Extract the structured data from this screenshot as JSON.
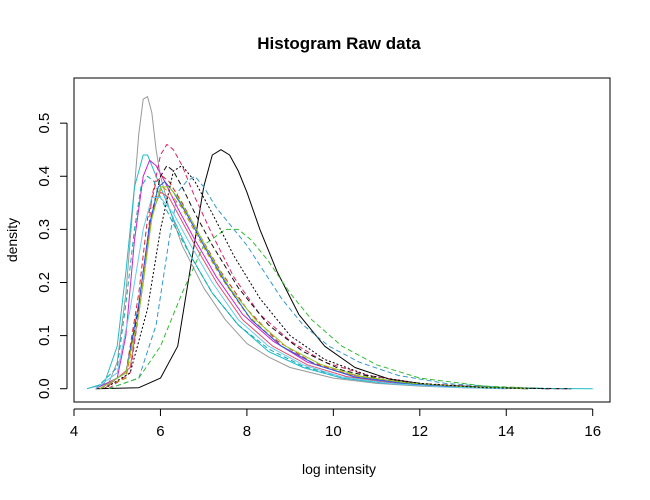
{
  "chart_data": {
    "type": "line",
    "title": "Histogram Raw data",
    "xlabel": "log intensity",
    "ylabel": "density",
    "xlim": [
      4.0,
      16.4
    ],
    "ylim": [
      -0.025,
      0.585
    ],
    "xticks": [
      4,
      6,
      8,
      10,
      12,
      14,
      16
    ],
    "yticks": [
      0.0,
      0.1,
      0.2,
      0.3,
      0.4,
      0.5
    ],
    "xtick_labels": [
      "4",
      "6",
      "8",
      "10",
      "12",
      "14",
      "16"
    ],
    "ytick_labels": [
      "0.0",
      "0.1",
      "0.2",
      "0.3",
      "0.4",
      "0.5"
    ],
    "grid": false,
    "legend": "none",
    "series": [
      {
        "color": "#000000",
        "dash": "solid",
        "x": [
          4.5,
          5.5,
          6.0,
          6.4,
          6.8,
          7.0,
          7.2,
          7.4,
          7.6,
          7.8,
          8.0,
          8.3,
          8.7,
          9.2,
          9.8,
          10.5,
          11.3,
          12.2,
          13.5,
          15.0
        ],
        "y": [
          0.0,
          0.002,
          0.02,
          0.08,
          0.28,
          0.38,
          0.44,
          0.45,
          0.44,
          0.41,
          0.37,
          0.3,
          0.22,
          0.14,
          0.08,
          0.04,
          0.018,
          0.008,
          0.003,
          0.0
        ]
      },
      {
        "color": "#999999",
        "dash": "solid",
        "x": [
          4.3,
          4.8,
          5.0,
          5.2,
          5.4,
          5.5,
          5.6,
          5.7,
          5.8,
          5.9,
          6.0,
          6.2,
          6.5,
          7.0,
          7.5,
          8.0,
          8.5,
          9.0,
          10.0,
          11.0,
          12.0,
          13.0,
          14.0
        ],
        "y": [
          0.0,
          0.01,
          0.05,
          0.18,
          0.38,
          0.48,
          0.545,
          0.55,
          0.52,
          0.45,
          0.4,
          0.34,
          0.27,
          0.19,
          0.13,
          0.085,
          0.06,
          0.04,
          0.02,
          0.01,
          0.005,
          0.002,
          0.0
        ]
      },
      {
        "color": "#22bbcc",
        "dash": "solid",
        "x": [
          4.3,
          4.7,
          5.0,
          5.2,
          5.4,
          5.6,
          5.7,
          5.8,
          6.0,
          6.3,
          6.7,
          7.2,
          7.8,
          8.5,
          9.3,
          10.2,
          11.2,
          12.5,
          14.0,
          16.0
        ],
        "y": [
          0.0,
          0.01,
          0.08,
          0.22,
          0.38,
          0.44,
          0.44,
          0.42,
          0.38,
          0.32,
          0.25,
          0.18,
          0.12,
          0.07,
          0.04,
          0.02,
          0.01,
          0.004,
          0.001,
          0.0
        ]
      },
      {
        "color": "#cc22cc",
        "dash": "solid",
        "x": [
          4.5,
          5.0,
          5.2,
          5.4,
          5.6,
          5.75,
          5.9,
          6.1,
          6.4,
          6.8,
          7.3,
          7.9,
          8.6,
          9.4,
          10.3,
          11.3,
          12.5,
          14.0,
          15.5
        ],
        "y": [
          0.0,
          0.02,
          0.1,
          0.28,
          0.4,
          0.43,
          0.42,
          0.39,
          0.34,
          0.28,
          0.21,
          0.14,
          0.09,
          0.05,
          0.028,
          0.014,
          0.005,
          0.001,
          0.0
        ]
      },
      {
        "color": "#dd2266",
        "dash": "dashed",
        "x": [
          4.8,
          5.3,
          5.6,
          5.8,
          6.0,
          6.15,
          6.3,
          6.5,
          6.8,
          7.2,
          7.7,
          8.3,
          9.0,
          9.8,
          10.8,
          12.0,
          13.5,
          15.0
        ],
        "y": [
          0.0,
          0.03,
          0.2,
          0.36,
          0.44,
          0.46,
          0.45,
          0.42,
          0.36,
          0.29,
          0.21,
          0.14,
          0.09,
          0.05,
          0.025,
          0.01,
          0.003,
          0.0
        ]
      },
      {
        "color": "#3399cc",
        "dash": "dashed",
        "x": [
          4.8,
          5.5,
          5.9,
          6.2,
          6.4,
          6.6,
          6.8,
          7.0,
          7.3,
          7.7,
          8.0,
          8.4,
          8.8,
          9.3,
          9.9,
          10.6,
          11.5,
          12.6,
          14.0,
          15.5
        ],
        "y": [
          0.0,
          0.02,
          0.12,
          0.28,
          0.37,
          0.39,
          0.4,
          0.38,
          0.34,
          0.3,
          0.27,
          0.22,
          0.17,
          0.12,
          0.08,
          0.05,
          0.025,
          0.01,
          0.002,
          0.0
        ]
      },
      {
        "color": "#33bb33",
        "dash": "dashed",
        "x": [
          4.8,
          5.5,
          6.0,
          6.5,
          7.0,
          7.5,
          7.8,
          8.1,
          8.5,
          9.0,
          9.5,
          10.2,
          11.0,
          12.0,
          13.5,
          15.0
        ],
        "y": [
          0.0,
          0.02,
          0.08,
          0.18,
          0.27,
          0.3,
          0.3,
          0.28,
          0.24,
          0.18,
          0.13,
          0.08,
          0.045,
          0.02,
          0.005,
          0.0
        ]
      },
      {
        "color": "#dd2222",
        "dash": "dashed",
        "x": [
          4.6,
          5.2,
          5.5,
          5.7,
          5.9,
          6.05,
          6.2,
          6.5,
          6.9,
          7.4,
          8.0,
          8.7,
          9.5,
          10.4,
          11.4,
          12.7,
          14.0,
          15.5
        ],
        "y": [
          0.0,
          0.03,
          0.18,
          0.32,
          0.39,
          0.4,
          0.39,
          0.35,
          0.29,
          0.22,
          0.15,
          0.09,
          0.05,
          0.026,
          0.012,
          0.004,
          0.001,
          0.0
        ]
      },
      {
        "color": "#111111",
        "dash": "dashed",
        "x": [
          4.6,
          5.2,
          5.6,
          5.8,
          6.0,
          6.15,
          6.3,
          6.5,
          6.8,
          7.2,
          7.8,
          8.5,
          9.3,
          10.2,
          11.2,
          12.5,
          14.0,
          15.5
        ],
        "y": [
          0.0,
          0.02,
          0.2,
          0.33,
          0.4,
          0.42,
          0.41,
          0.38,
          0.33,
          0.27,
          0.19,
          0.12,
          0.07,
          0.035,
          0.016,
          0.006,
          0.001,
          0.0
        ]
      },
      {
        "color": "#cc9900",
        "dash": "dashed",
        "x": [
          4.6,
          5.2,
          5.5,
          5.7,
          5.9,
          6.05,
          6.2,
          6.5,
          6.9,
          7.4,
          8.0,
          8.8,
          9.6,
          10.5,
          11.6,
          13.0,
          14.5
        ],
        "y": [
          0.0,
          0.02,
          0.14,
          0.28,
          0.36,
          0.38,
          0.37,
          0.34,
          0.28,
          0.21,
          0.14,
          0.08,
          0.045,
          0.024,
          0.01,
          0.003,
          0.0
        ]
      },
      {
        "color": "#11aaaa",
        "dash": "dashed",
        "x": [
          4.5,
          5.0,
          5.2,
          5.4,
          5.55,
          5.7,
          5.85,
          6.0,
          6.3,
          6.7,
          7.2,
          7.8,
          8.5,
          9.3,
          10.2,
          11.3,
          12.6,
          14.0,
          15.5
        ],
        "y": [
          0.0,
          0.04,
          0.16,
          0.3,
          0.38,
          0.4,
          0.39,
          0.36,
          0.31,
          0.25,
          0.18,
          0.12,
          0.075,
          0.042,
          0.022,
          0.01,
          0.004,
          0.001,
          0.0
        ]
      },
      {
        "color": "#e05070",
        "dash": "solid",
        "x": [
          4.7,
          5.3,
          5.6,
          5.8,
          6.0,
          6.2,
          6.4,
          6.8,
          7.3,
          7.9,
          8.6,
          9.4,
          10.3,
          11.4,
          12.8,
          14.5
        ],
        "y": [
          0.0,
          0.04,
          0.2,
          0.33,
          0.37,
          0.36,
          0.33,
          0.27,
          0.2,
          0.13,
          0.08,
          0.045,
          0.023,
          0.01,
          0.003,
          0.0
        ]
      },
      {
        "color": "#2255ee",
        "dash": "solid",
        "x": [
          4.6,
          5.2,
          5.5,
          5.75,
          5.95,
          6.1,
          6.3,
          6.6,
          7.0,
          7.5,
          8.1,
          8.8,
          9.6,
          10.5,
          11.6,
          13.0,
          14.5
        ],
        "y": [
          0.0,
          0.03,
          0.16,
          0.31,
          0.38,
          0.39,
          0.37,
          0.33,
          0.27,
          0.2,
          0.13,
          0.08,
          0.045,
          0.022,
          0.01,
          0.003,
          0.0
        ]
      },
      {
        "color": "#88cc22",
        "dash": "solid",
        "x": [
          4.6,
          5.2,
          5.5,
          5.8,
          6.0,
          6.2,
          6.4,
          6.7,
          7.1,
          7.6,
          8.2,
          8.9,
          9.7,
          10.6,
          11.7,
          13.0,
          14.5
        ],
        "y": [
          0.0,
          0.03,
          0.14,
          0.32,
          0.38,
          0.38,
          0.36,
          0.32,
          0.26,
          0.19,
          0.13,
          0.08,
          0.046,
          0.024,
          0.011,
          0.004,
          0.0
        ]
      },
      {
        "color": "#66ccee",
        "dash": "solid",
        "x": [
          4.5,
          5.0,
          5.3,
          5.6,
          5.8,
          6.0,
          6.3,
          6.7,
          7.2,
          7.8,
          8.5,
          9.3,
          10.2,
          11.3,
          12.6,
          14.0
        ],
        "y": [
          0.0,
          0.03,
          0.15,
          0.3,
          0.36,
          0.36,
          0.33,
          0.27,
          0.2,
          0.13,
          0.08,
          0.045,
          0.022,
          0.01,
          0.003,
          0.0
        ]
      },
      {
        "color": "#000000",
        "dash": "dotted",
        "x": [
          4.7,
          5.3,
          5.7,
          6.0,
          6.3,
          6.5,
          6.8,
          7.2,
          7.7,
          8.3,
          9.0,
          9.8,
          10.8,
          12.0,
          13.5,
          15.0
        ],
        "y": [
          0.0,
          0.03,
          0.15,
          0.3,
          0.41,
          0.42,
          0.39,
          0.33,
          0.25,
          0.17,
          0.1,
          0.055,
          0.025,
          0.01,
          0.002,
          0.0
        ]
      }
    ]
  }
}
